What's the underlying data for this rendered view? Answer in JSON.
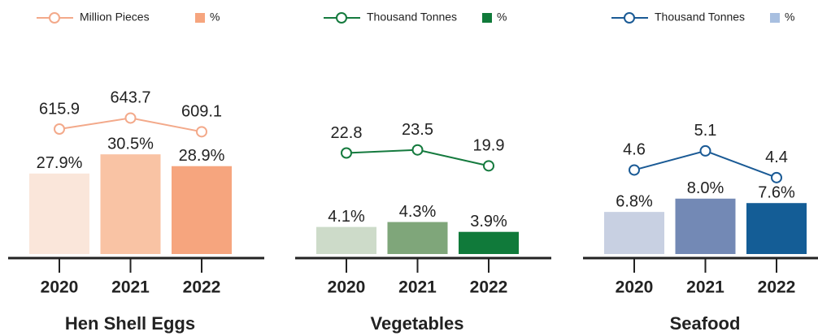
{
  "chart_data": [
    {
      "type": "bar",
      "title": "Hen Shell Eggs",
      "categories": [
        "2020",
        "2021",
        "2022"
      ],
      "ylim": [
        17,
        47
      ],
      "y2lim": [
        300,
        860
      ],
      "series": [
        {
          "name": "Million Pieces",
          "type": "line",
          "axis": "y2",
          "color": "#f3a98a",
          "values": [
            615.9,
            643.7,
            609.1
          ]
        },
        {
          "name": "%",
          "type": "bar",
          "color": "#f6a57e",
          "colors": [
            "#fae6da",
            "#f9c3a4",
            "#f6a57e"
          ],
          "values": [
            27.9,
            30.5,
            28.9
          ],
          "value_labels": [
            "27.9%",
            "30.5%",
            "28.9%"
          ]
        }
      ]
    },
    {
      "type": "bar",
      "title": "Vegetables",
      "categories": [
        "2020",
        "2021",
        "2022"
      ],
      "ylim": [
        3,
        12
      ],
      "y2lim": [
        0,
        50
      ],
      "series": [
        {
          "name": "Thousand Tonnes",
          "type": "line",
          "axis": "y2",
          "color": "#157a3e",
          "values": [
            22.8,
            23.5,
            19.9
          ]
        },
        {
          "name": "%",
          "type": "bar",
          "color": "#107a3a",
          "colors": [
            "#cddbc9",
            "#7fa67a",
            "#107a3a"
          ],
          "values": [
            4.1,
            4.3,
            3.9
          ],
          "value_labels": [
            "4.1%",
            "4.3%",
            "3.9%"
          ]
        }
      ]
    },
    {
      "type": "bar",
      "title": "Seafood",
      "categories": [
        "2020",
        "2021",
        "2022"
      ],
      "ylim": [
        3,
        23
      ],
      "y2lim": [
        2.4,
        8.2
      ],
      "series": [
        {
          "name": "Thousand Tonnes",
          "type": "line",
          "axis": "y2",
          "color": "#1a5a95",
          "values": [
            4.6,
            5.1,
            4.4
          ]
        },
        {
          "name": "%",
          "type": "bar",
          "color": "#a8bfe0",
          "colors": [
            "#c8d0e2",
            "#7389b5",
            "#145d96"
          ],
          "values": [
            6.8,
            8.0,
            7.6
          ],
          "value_labels": [
            "6.8%",
            "8.0%",
            "7.6%"
          ]
        }
      ]
    }
  ]
}
